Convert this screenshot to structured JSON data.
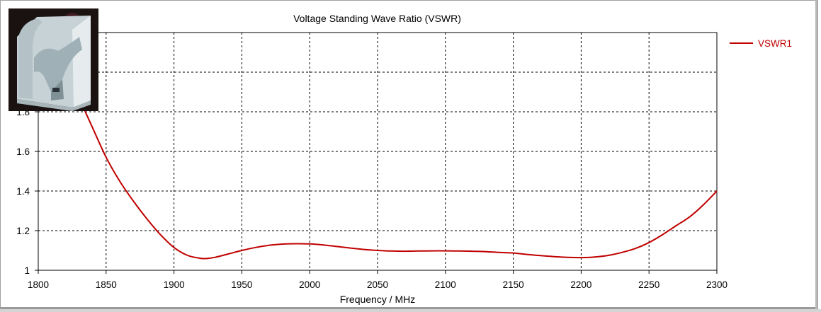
{
  "chart_data": {
    "type": "line",
    "title": "Voltage Standing Wave Ratio (VSWR)",
    "xlabel": "Frequency / MHz",
    "ylabel": "",
    "xlim": [
      1800,
      2300
    ],
    "ylim": [
      1,
      2.2
    ],
    "xticks": [
      1800,
      1850,
      1900,
      1950,
      2000,
      2050,
      2100,
      2150,
      2200,
      2250,
      2300
    ],
    "yticks": [
      "1",
      "1.2",
      "1.4",
      "1.6",
      "1.8"
    ],
    "ytick_values": [
      1,
      1.2,
      1.4,
      1.6,
      1.8
    ],
    "grid": true,
    "legend_position": "top-right",
    "series": [
      {
        "name": "VSWR1",
        "color": "#c00000",
        "x": [
          1825,
          1830,
          1840,
          1850,
          1860,
          1870,
          1880,
          1890,
          1900,
          1910,
          1920,
          1925,
          1930,
          1940,
          1950,
          1960,
          1970,
          1980,
          1990,
          2000,
          2010,
          2020,
          2030,
          2040,
          2050,
          2060,
          2070,
          2080,
          2090,
          2100,
          2110,
          2120,
          2130,
          2140,
          2150,
          2160,
          2170,
          2180,
          2190,
          2200,
          2210,
          2220,
          2230,
          2240,
          2250,
          2260,
          2270,
          2280,
          2290,
          2300
        ],
        "y": [
          1.95,
          1.87,
          1.72,
          1.57,
          1.45,
          1.35,
          1.26,
          1.18,
          1.115,
          1.075,
          1.06,
          1.06,
          1.065,
          1.082,
          1.1,
          1.115,
          1.126,
          1.132,
          1.134,
          1.133,
          1.128,
          1.12,
          1.112,
          1.105,
          1.1,
          1.097,
          1.096,
          1.097,
          1.098,
          1.098,
          1.097,
          1.096,
          1.094,
          1.09,
          1.087,
          1.08,
          1.074,
          1.069,
          1.065,
          1.064,
          1.067,
          1.075,
          1.09,
          1.11,
          1.14,
          1.18,
          1.225,
          1.27,
          1.33,
          1.4
        ]
      }
    ]
  },
  "inset": {
    "icon": "3d-antenna-model-image",
    "colors": {
      "background": "#1a1210",
      "model": "#cfd9dc"
    }
  },
  "colors": {
    "grid": "#000000",
    "axis": "#000000",
    "series": "#c00000"
  }
}
